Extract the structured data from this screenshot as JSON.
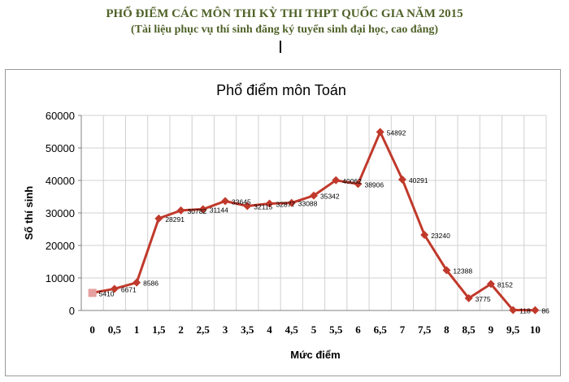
{
  "document": {
    "title": "PHỔ ĐIỂM CÁC MÔN THI KỲ THI THPT QUỐC GIA NĂM 2015",
    "subtitle": "(Tài liệu phục vụ thí sinh đăng ký tuyển sinh đại học, cao đẳng)"
  },
  "colors": {
    "series": "#c0392b",
    "first_point": "#e6a0a0",
    "grid": "#d0d0d0"
  },
  "chart_data": {
    "type": "line",
    "title": "Phổ điểm môn Toán",
    "xlabel": "Mức điểm",
    "ylabel": "Số thí sinh",
    "ylim": [
      0,
      60000
    ],
    "yticks": [
      "0",
      "10000",
      "20000",
      "30000",
      "40000",
      "50000",
      "60000"
    ],
    "grid": true,
    "categories": [
      "0",
      "0,5",
      "1",
      "1,5",
      "2",
      "2,5",
      "3",
      "3,5",
      "4",
      "4,5",
      "5",
      "5,5",
      "6",
      "6,5",
      "7",
      "7,5",
      "8",
      "8,5",
      "9",
      "9,5",
      "10"
    ],
    "values": [
      5410,
      6671,
      8586,
      28291,
      30782,
      31144,
      33645,
      32115,
      32877,
      33088,
      35342,
      40062,
      38906,
      54892,
      40291,
      23240,
      12388,
      3775,
      8152,
      118,
      86
    ],
    "labels": [
      "5410",
      "6671",
      "8586",
      "28291",
      "30782",
      "31144",
      "33645",
      "32115",
      "32877",
      "33088",
      "35342",
      "40062",
      "38906",
      "54892",
      "40291",
      "23240",
      "12388",
      "3775",
      "8152",
      "118",
      "86"
    ]
  }
}
